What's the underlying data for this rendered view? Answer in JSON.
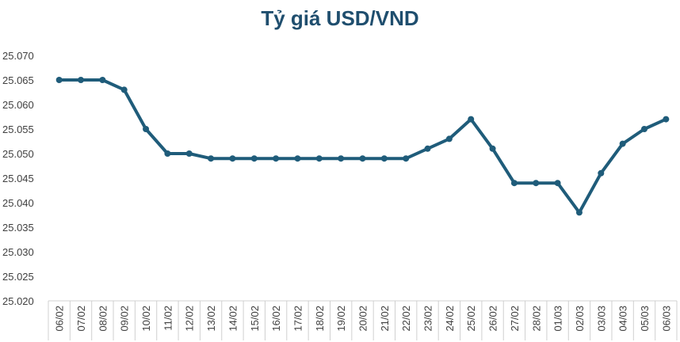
{
  "chart_data": {
    "type": "line",
    "title": "Tỷ giá USD/VND",
    "xlabel": "",
    "ylabel": "",
    "categories": [
      "06/02",
      "07/02",
      "08/02",
      "09/02",
      "10/02",
      "11/02",
      "12/02",
      "13/02",
      "14/02",
      "15/02",
      "16/02",
      "17/02",
      "18/02",
      "19/02",
      "20/02",
      "21/02",
      "22/02",
      "23/02",
      "24/02",
      "25/02",
      "26/02",
      "27/02",
      "28/02",
      "01/03",
      "02/03",
      "03/03",
      "04/03",
      "05/03",
      "06/03"
    ],
    "series": [
      {
        "values": [
          25065,
          25065,
          25065,
          25063,
          25055,
          25050,
          25050,
          25049,
          25049,
          25049,
          25049,
          25049,
          25049,
          25049,
          25049,
          25049,
          25049,
          25051,
          25053,
          25057,
          25051,
          25044,
          25044,
          25044,
          25038,
          25046,
          25052,
          25055,
          25057
        ]
      }
    ],
    "yticks": [
      "25.020",
      "25.025",
      "25.030",
      "25.035",
      "25.040",
      "25.045",
      "25.050",
      "25.055",
      "25.060",
      "25.065",
      "25.070"
    ],
    "ylim": [
      25020,
      25070
    ],
    "grid": false,
    "legend": "none",
    "line_color": "#1f5c7a"
  }
}
